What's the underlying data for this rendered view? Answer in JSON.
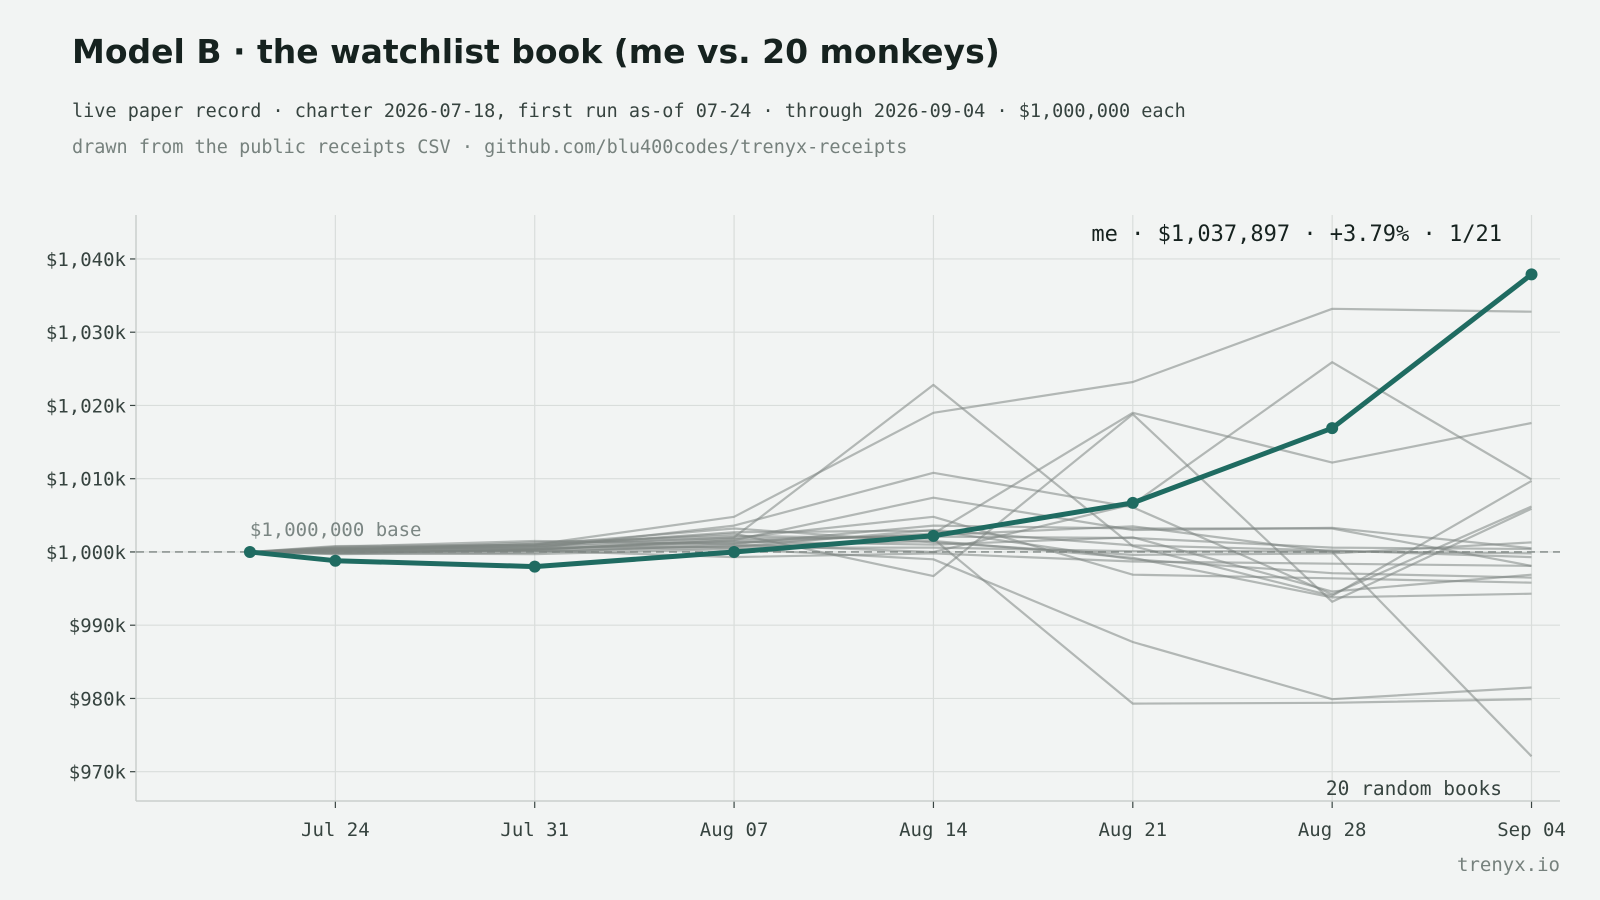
{
  "header": {
    "title": "Model B · the watchlist book (me vs. 20 monkeys)",
    "subtitle": "live paper record · charter 2026-07-18, first run as-of 07-24 · through 2026-09-04 · $1,000,000 each",
    "source": "drawn from the public receipts CSV · github.com/blu400codes/trenyx-receipts"
  },
  "footer": {
    "brand": "trenyx.io"
  },
  "colors": {
    "background": "#f2f4f3",
    "me": "#1f6b61",
    "monkeys": "#7d8582",
    "grid": "#d9dddb",
    "baseline": "#8c9491"
  },
  "chart_data": {
    "type": "line",
    "x": [
      "2026-07-21",
      "2026-07-24",
      "2026-07-31",
      "2026-08-07",
      "2026-08-14",
      "2026-08-21",
      "2026-08-28",
      "2026-09-04"
    ],
    "xticks": [
      "Jul 24",
      "Jul 31",
      "Aug 07",
      "Aug 14",
      "Aug 21",
      "Aug 28",
      "Sep 04"
    ],
    "yticks": [
      "$970k",
      "$980k",
      "$990k",
      "$1,000k",
      "$1,010k",
      "$1,020k",
      "$1,030k",
      "$1,040k"
    ],
    "ytick_values": [
      970000,
      980000,
      990000,
      1000000,
      1010000,
      1020000,
      1030000,
      1040000
    ],
    "ylim": [
      966000,
      1046000
    ],
    "grid": true,
    "baseline": {
      "value": 1000000,
      "label": "$1,000,000 base"
    },
    "me": {
      "values": [
        1000000,
        998800,
        998000,
        1000000,
        1002200,
        1006700,
        1016900,
        1037897
      ],
      "annotation": "me · $1,037,897 · +3.79% · 1/21"
    },
    "monkeys": {
      "label": "20 random books",
      "series": [
        [
          1000000,
          1000500,
          1001000,
          1004800,
          1019000,
          1023200,
          1033200,
          1032800
        ],
        [
          1000000,
          1000200,
          1000800,
          1002000,
          1022800,
          1000800,
          994000,
          1009700
        ],
        [
          1000000,
          1000100,
          1000400,
          1001200,
          1002500,
          1019000,
          1012200,
          1017600
        ],
        [
          1000000,
          999700,
          999900,
          1001000,
          1000000,
          1006500,
          1025900,
          1009900
        ],
        [
          1000000,
          1000400,
          1000500,
          1003600,
          1010800,
          1006100,
          994200,
          1006200
        ],
        [
          1000000,
          999900,
          1000300,
          1001600,
          1007400,
          1003000,
          1003300,
          1000500
        ],
        [
          1000000,
          1000200,
          1001100,
          1001900,
          1004800,
          996900,
          996400,
          995800
        ],
        [
          1000000,
          999800,
          999700,
          1000400,
          999000,
          987700,
          979900,
          981500
        ],
        [
          1000000,
          1000600,
          1000900,
          1002500,
          996700,
          1018800,
          993200,
          1005900
        ],
        [
          1000000,
          1000300,
          1001300,
          1002200,
          1001800,
          979300,
          979400,
          979900
        ],
        [
          1000000,
          999900,
          1000200,
          1000800,
          1001500,
          999200,
          993800,
          994300
        ],
        [
          1000000,
          1000700,
          1001500,
          1001100,
          1003600,
          1003200,
          1003200,
          998100
        ],
        [
          1000000,
          1000400,
          1000700,
          1001500,
          1002300,
          1003500,
          1000000,
          972100
        ],
        [
          1000000,
          999800,
          1000300,
          1001800,
          1002100,
          1001900,
          1000600,
          1000400
        ],
        [
          1000000,
          1000300,
          1000600,
          1000700,
          1003000,
          1000900,
          1000200,
          999300
        ],
        [
          1000000,
          1000100,
          1000200,
          999300,
          999800,
          998700,
          998400,
          998100
        ],
        [
          1000000,
          1000500,
          1000800,
          1002700,
          1002900,
          999000,
          997100,
          996500
        ],
        [
          1000000,
          1000200,
          1000400,
          1001400,
          1001000,
          1002000,
          994600,
          996900
        ],
        [
          1000000,
          1000800,
          1001000,
          1003200,
          1001300,
          999600,
          999800,
          1001300
        ],
        [
          1000000,
          1000100,
          1000100,
          1000600,
          1000600,
          1000100,
          1000100,
          999800
        ]
      ]
    }
  }
}
